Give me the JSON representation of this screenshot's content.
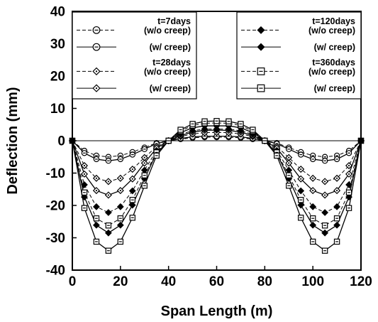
{
  "chart_data": {
    "type": "line",
    "xlabel": "Span Length (m)",
    "ylabel": "Deflection (mm)",
    "xlim": [
      0,
      120
    ],
    "ylim": [
      -40,
      40
    ],
    "xticks": [
      0,
      20,
      40,
      60,
      80,
      100,
      120
    ],
    "yticks": [
      -40,
      -30,
      -20,
      -10,
      0,
      10,
      20,
      30,
      40
    ],
    "grid": false,
    "zero_line": true,
    "legend_placement": "top, two boxes (upper-left and upper-right)",
    "x": [
      0,
      5,
      10,
      15,
      20,
      25,
      30,
      35,
      40,
      45,
      50,
      55,
      60,
      65,
      70,
      75,
      80,
      85,
      90,
      95,
      100,
      105,
      110,
      115,
      120
    ],
    "series": [
      {
        "name": "(w/o creep)",
        "group": "t=7days",
        "marker": "circle-dot",
        "dashed": true,
        "values": [
          0,
          -3.1,
          -4.6,
          -5.0,
          -4.6,
          -3.5,
          -2.1,
          -0.7,
          0,
          0.5,
          0.9,
          1.1,
          1.1,
          1.1,
          0.9,
          0.5,
          0,
          -0.7,
          -2.1,
          -3.5,
          -4.6,
          -5.0,
          -4.6,
          -3.1,
          0
        ]
      },
      {
        "name": "(w/ creep)",
        "group": "t=7days",
        "marker": "circle-dot",
        "dashed": false,
        "values": [
          0,
          -3.8,
          -5.7,
          -6.2,
          -5.7,
          -4.3,
          -2.6,
          -0.9,
          0,
          0.7,
          1.2,
          1.4,
          1.4,
          1.4,
          1.2,
          0.7,
          0,
          -0.9,
          -2.6,
          -4.3,
          -5.7,
          -6.2,
          -5.7,
          -3.8,
          0
        ]
      },
      {
        "name": "(w/o creep)",
        "group": "t=28days",
        "marker": "diamond-dot",
        "dashed": true,
        "values": [
          0,
          -7.7,
          -11.6,
          -12.6,
          -11.6,
          -8.8,
          -5.2,
          -1.8,
          0,
          1.3,
          2.1,
          2.5,
          2.6,
          2.5,
          2.1,
          1.3,
          0,
          -1.8,
          -5.2,
          -8.8,
          -11.6,
          -12.6,
          -11.6,
          -7.7,
          0
        ]
      },
      {
        "name": "(w/ creep)",
        "group": "t=28days",
        "marker": "diamond-dot",
        "dashed": false,
        "values": [
          0,
          -10.3,
          -15.4,
          -16.8,
          -15.4,
          -11.8,
          -6.9,
          -2.3,
          0,
          1.6,
          2.7,
          3.2,
          3.3,
          3.2,
          2.7,
          1.6,
          0,
          -2.3,
          -6.9,
          -11.8,
          -15.4,
          -16.8,
          -15.4,
          -10.3,
          0
        ]
      },
      {
        "name": "(w/o creep)",
        "group": "t=120days",
        "marker": "filled-diamond",
        "dashed": true,
        "values": [
          0,
          -13.6,
          -20.4,
          -22.2,
          -20.4,
          -15.5,
          -9.1,
          -3.0,
          0,
          2.0,
          3.1,
          3.6,
          3.6,
          3.6,
          3.1,
          2.0,
          0,
          -3.0,
          -9.1,
          -15.5,
          -20.4,
          -22.2,
          -20.4,
          -13.6,
          0
        ]
      },
      {
        "name": "(w/ creep)",
        "group": "t=120days",
        "marker": "filled-diamond",
        "dashed": false,
        "values": [
          0,
          -17.4,
          -26.1,
          -28.5,
          -26.1,
          -19.9,
          -11.7,
          -3.9,
          0,
          2.5,
          4.0,
          4.6,
          4.6,
          4.6,
          4.0,
          2.5,
          0,
          -3.9,
          -11.7,
          -19.9,
          -26.1,
          -28.5,
          -26.1,
          -17.4,
          0
        ]
      },
      {
        "name": "(w/o creep)",
        "group": "t=360days",
        "marker": "square-dot",
        "dashed": true,
        "values": [
          0,
          -16.0,
          -24.0,
          -26.2,
          -24.0,
          -18.3,
          -10.7,
          -3.6,
          0,
          3.0,
          4.7,
          5.4,
          5.5,
          5.4,
          4.7,
          3.0,
          0,
          -3.6,
          -10.7,
          -18.3,
          -24.0,
          -26.2,
          -24.0,
          -16.0,
          0
        ]
      },
      {
        "name": "(w/ creep)",
        "group": "t=360days",
        "marker": "square-dot",
        "dashed": false,
        "values": [
          0,
          -20.8,
          -31.2,
          -34.0,
          -31.2,
          -23.8,
          -13.9,
          -4.6,
          0,
          3.4,
          5.2,
          6.0,
          6.1,
          6.0,
          5.2,
          3.4,
          0,
          -4.6,
          -13.9,
          -23.8,
          -31.2,
          -34.0,
          -31.2,
          -20.8,
          0
        ]
      }
    ],
    "legend_left": [
      {
        "label": "t=7days",
        "sub": "(w/o creep)",
        "series_index": 0
      },
      {
        "label": "",
        "sub": "(w/ creep)",
        "series_index": 1
      },
      {
        "label": "t=28days",
        "sub": "(w/o creep)",
        "series_index": 2
      },
      {
        "label": "",
        "sub": "(w/ creep)",
        "series_index": 3
      }
    ],
    "legend_right": [
      {
        "label": "t=120days",
        "sub": "(w/o creep)",
        "series_index": 4
      },
      {
        "label": "",
        "sub": "(w/ creep)",
        "series_index": 5
      },
      {
        "label": "t=360days",
        "sub": "(w/o creep)",
        "series_index": 6
      },
      {
        "label": "",
        "sub": "(w/ creep)",
        "series_index": 7
      }
    ]
  }
}
